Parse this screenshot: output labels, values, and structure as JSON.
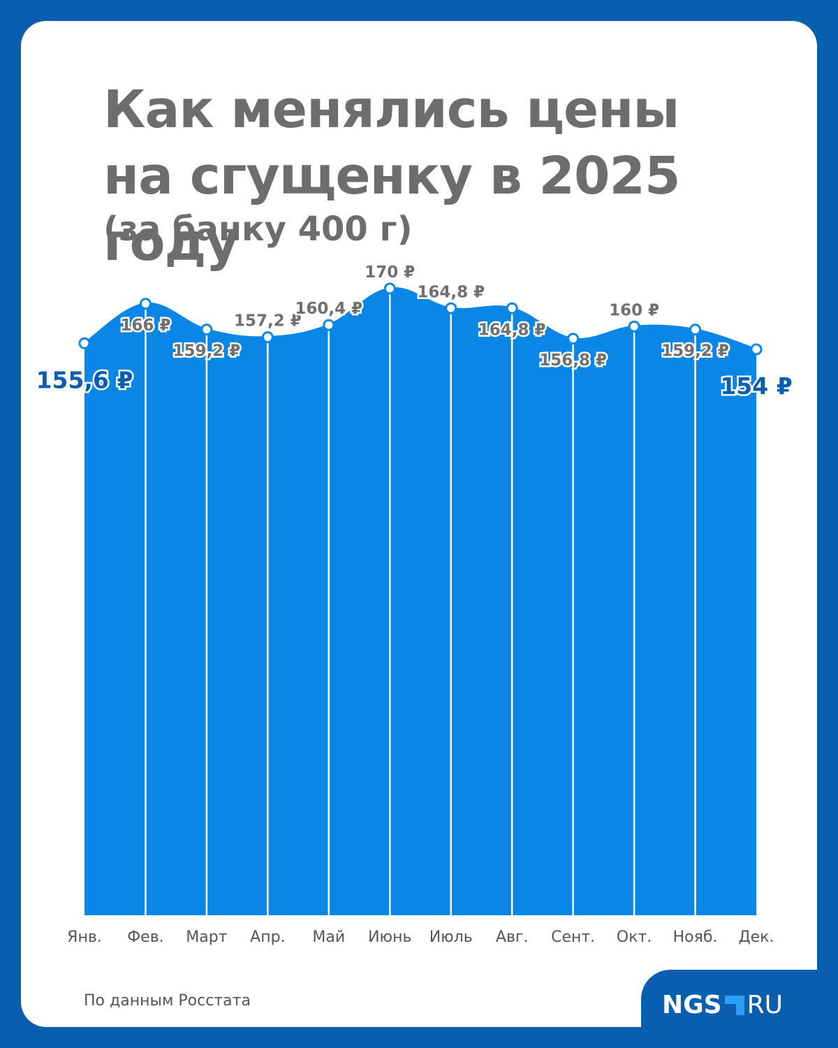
{
  "title_line1": "Как менялись цены",
  "title_line2": "на сгущенку в 2025 году",
  "subtitle": "(за банку 400 г)",
  "source": "По данным Росстата",
  "logo": {
    "main": "NGS",
    "suffix": "RU"
  },
  "colors": {
    "area": "#0a87e6",
    "accent": "#0a5eb0",
    "label": "#707070"
  },
  "chart_data": {
    "type": "area",
    "title": "Как менялись цены на сгущенку в 2025 году",
    "subtitle": "(за банку 400 г)",
    "categories": [
      "Янв.",
      "Фев.",
      "Март",
      "Апр.",
      "Май",
      "Июнь",
      "Июль",
      "Авг.",
      "Сент.",
      "Окт.",
      "Нояб.",
      "Дек."
    ],
    "values": [
      155.6,
      166,
      159.2,
      157.2,
      160.4,
      170,
      164.8,
      164.8,
      156.8,
      160,
      159.2,
      154
    ],
    "labels": [
      "155,6 ₽",
      "166 ₽",
      "159,2 ₽",
      "157,2 ₽",
      "160,4 ₽",
      "170 ₽",
      "164,8 ₽",
      "164,8 ₽",
      "156,8 ₽",
      "160 ₽",
      "159,2 ₽",
      "154 ₽"
    ],
    "unit": "₽",
    "ylim": [
      0,
      170
    ],
    "grid": false,
    "legend": "none"
  }
}
